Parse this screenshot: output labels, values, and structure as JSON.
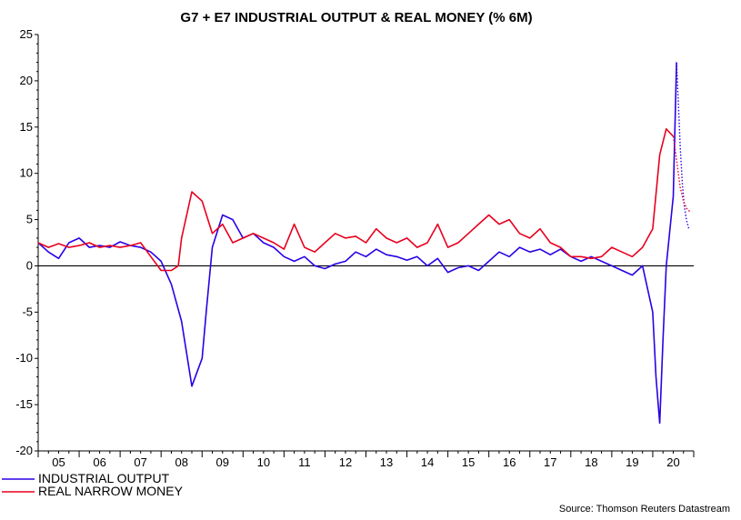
{
  "chart_data": {
    "type": "line",
    "title": "G7 + E7 INDUSTRIAL OUTPUT & REAL MONEY (% 6M)",
    "xlabel": "",
    "ylabel": "",
    "ylim": [
      -20,
      25
    ],
    "yticks": [
      25,
      20,
      15,
      10,
      5,
      0,
      -5,
      -10,
      -15,
      -20
    ],
    "xlim": [
      2005.0,
      2021.0
    ],
    "year_labels": [
      "05",
      "06",
      "07",
      "08",
      "09",
      "10",
      "11",
      "12",
      "13",
      "14",
      "15",
      "16",
      "17",
      "18",
      "19",
      "20"
    ],
    "grid": false,
    "zero_line": true,
    "legend_position": "bottom-left",
    "series": [
      {
        "name": "INDUSTRIAL OUTPUT",
        "color": "#2a00e6",
        "style": "solid",
        "x": [
          2005.0,
          2005.25,
          2005.5,
          2005.75,
          2006.0,
          2006.25,
          2006.5,
          2006.75,
          2007.0,
          2007.25,
          2007.5,
          2007.75,
          2008.0,
          2008.25,
          2008.5,
          2008.75,
          2009.0,
          2009.1,
          2009.25,
          2009.5,
          2009.75,
          2010.0,
          2010.25,
          2010.5,
          2010.75,
          2011.0,
          2011.25,
          2011.5,
          2011.75,
          2012.0,
          2012.25,
          2012.5,
          2012.75,
          2013.0,
          2013.25,
          2013.5,
          2013.75,
          2014.0,
          2014.25,
          2014.5,
          2014.75,
          2015.0,
          2015.25,
          2015.5,
          2015.75,
          2016.0,
          2016.25,
          2016.5,
          2016.75,
          2017.0,
          2017.25,
          2017.5,
          2017.75,
          2018.0,
          2018.25,
          2018.5,
          2018.75,
          2019.0,
          2019.25,
          2019.5,
          2019.75,
          2020.0,
          2020.08,
          2020.17,
          2020.25,
          2020.33,
          2020.42,
          2020.5,
          2020.58
        ],
        "y": [
          2.5,
          1.5,
          0.8,
          2.5,
          3.0,
          2.0,
          2.2,
          2.0,
          2.6,
          2.2,
          2.0,
          1.5,
          0.5,
          -2.0,
          -6.0,
          -13.0,
          -10.0,
          -5.0,
          2.0,
          5.5,
          5.0,
          3.0,
          3.5,
          2.5,
          2.0,
          1.0,
          0.5,
          1.0,
          0.0,
          -0.3,
          0.2,
          0.5,
          1.5,
          1.0,
          1.8,
          1.2,
          1.0,
          0.6,
          1.0,
          0.0,
          0.8,
          -0.7,
          -0.2,
          0.0,
          -0.5,
          0.5,
          1.5,
          1.0,
          2.0,
          1.5,
          1.8,
          1.2,
          1.8,
          1.0,
          0.5,
          1.0,
          0.5,
          0.0,
          -0.5,
          -1.0,
          0.0,
          -5.0,
          -12.0,
          -17.0,
          -8.0,
          0.0,
          4.0,
          7.5,
          22.0
        ]
      },
      {
        "name": "",
        "color": "#2a00e6",
        "style": "dotted",
        "x": [
          2020.58,
          2020.62,
          2020.67,
          2020.72,
          2020.77,
          2020.82,
          2020.88
        ],
        "y": [
          22.0,
          18.0,
          13.0,
          9.0,
          6.5,
          5.0,
          4.0
        ]
      },
      {
        "name": "REAL NARROW MONEY",
        "color": "#e8001e",
        "style": "solid",
        "x": [
          2005.0,
          2005.25,
          2005.5,
          2005.75,
          2006.0,
          2006.25,
          2006.5,
          2006.75,
          2007.0,
          2007.25,
          2007.5,
          2007.75,
          2008.0,
          2008.25,
          2008.42,
          2008.5,
          2008.75,
          2009.0,
          2009.25,
          2009.5,
          2009.75,
          2010.0,
          2010.25,
          2010.5,
          2010.75,
          2011.0,
          2011.25,
          2011.5,
          2011.75,
          2012.0,
          2012.25,
          2012.5,
          2012.75,
          2013.0,
          2013.25,
          2013.5,
          2013.75,
          2014.0,
          2014.25,
          2014.5,
          2014.75,
          2015.0,
          2015.25,
          2015.5,
          2015.75,
          2016.0,
          2016.25,
          2016.5,
          2016.75,
          2017.0,
          2017.25,
          2017.5,
          2017.75,
          2018.0,
          2018.25,
          2018.5,
          2018.75,
          2019.0,
          2019.25,
          2019.5,
          2019.75,
          2020.0,
          2020.17,
          2020.33,
          2020.5
        ],
        "y": [
          2.5,
          2.0,
          2.4,
          2.0,
          2.2,
          2.5,
          2.0,
          2.2,
          2.0,
          2.2,
          2.5,
          1.0,
          -0.5,
          -0.5,
          0.0,
          3.0,
          8.0,
          7.0,
          3.5,
          4.5,
          2.5,
          3.0,
          3.5,
          3.0,
          2.5,
          1.8,
          4.5,
          2.0,
          1.5,
          2.5,
          3.5,
          3.0,
          3.2,
          2.5,
          4.0,
          3.0,
          2.5,
          3.0,
          2.0,
          2.5,
          4.5,
          2.0,
          2.5,
          3.5,
          4.5,
          5.5,
          4.5,
          5.0,
          3.5,
          3.0,
          4.0,
          2.5,
          2.0,
          1.0,
          1.0,
          0.8,
          1.0,
          2.0,
          1.5,
          1.0,
          2.0,
          4.0,
          12.0,
          14.8,
          14.0
        ]
      },
      {
        "name": "",
        "color": "#e8001e",
        "style": "dotted",
        "x": [
          2020.5,
          2020.58,
          2020.67,
          2020.75,
          2020.83,
          2020.92
        ],
        "y": [
          14.0,
          11.5,
          8.5,
          7.0,
          6.2,
          5.8
        ]
      }
    ],
    "legend": [
      {
        "label": "INDUSTRIAL OUTPUT",
        "color": "#2a00e6"
      },
      {
        "label": "REAL NARROW MONEY",
        "color": "#e8001e"
      }
    ],
    "source": "Source: Thomson Reuters Datastream"
  }
}
